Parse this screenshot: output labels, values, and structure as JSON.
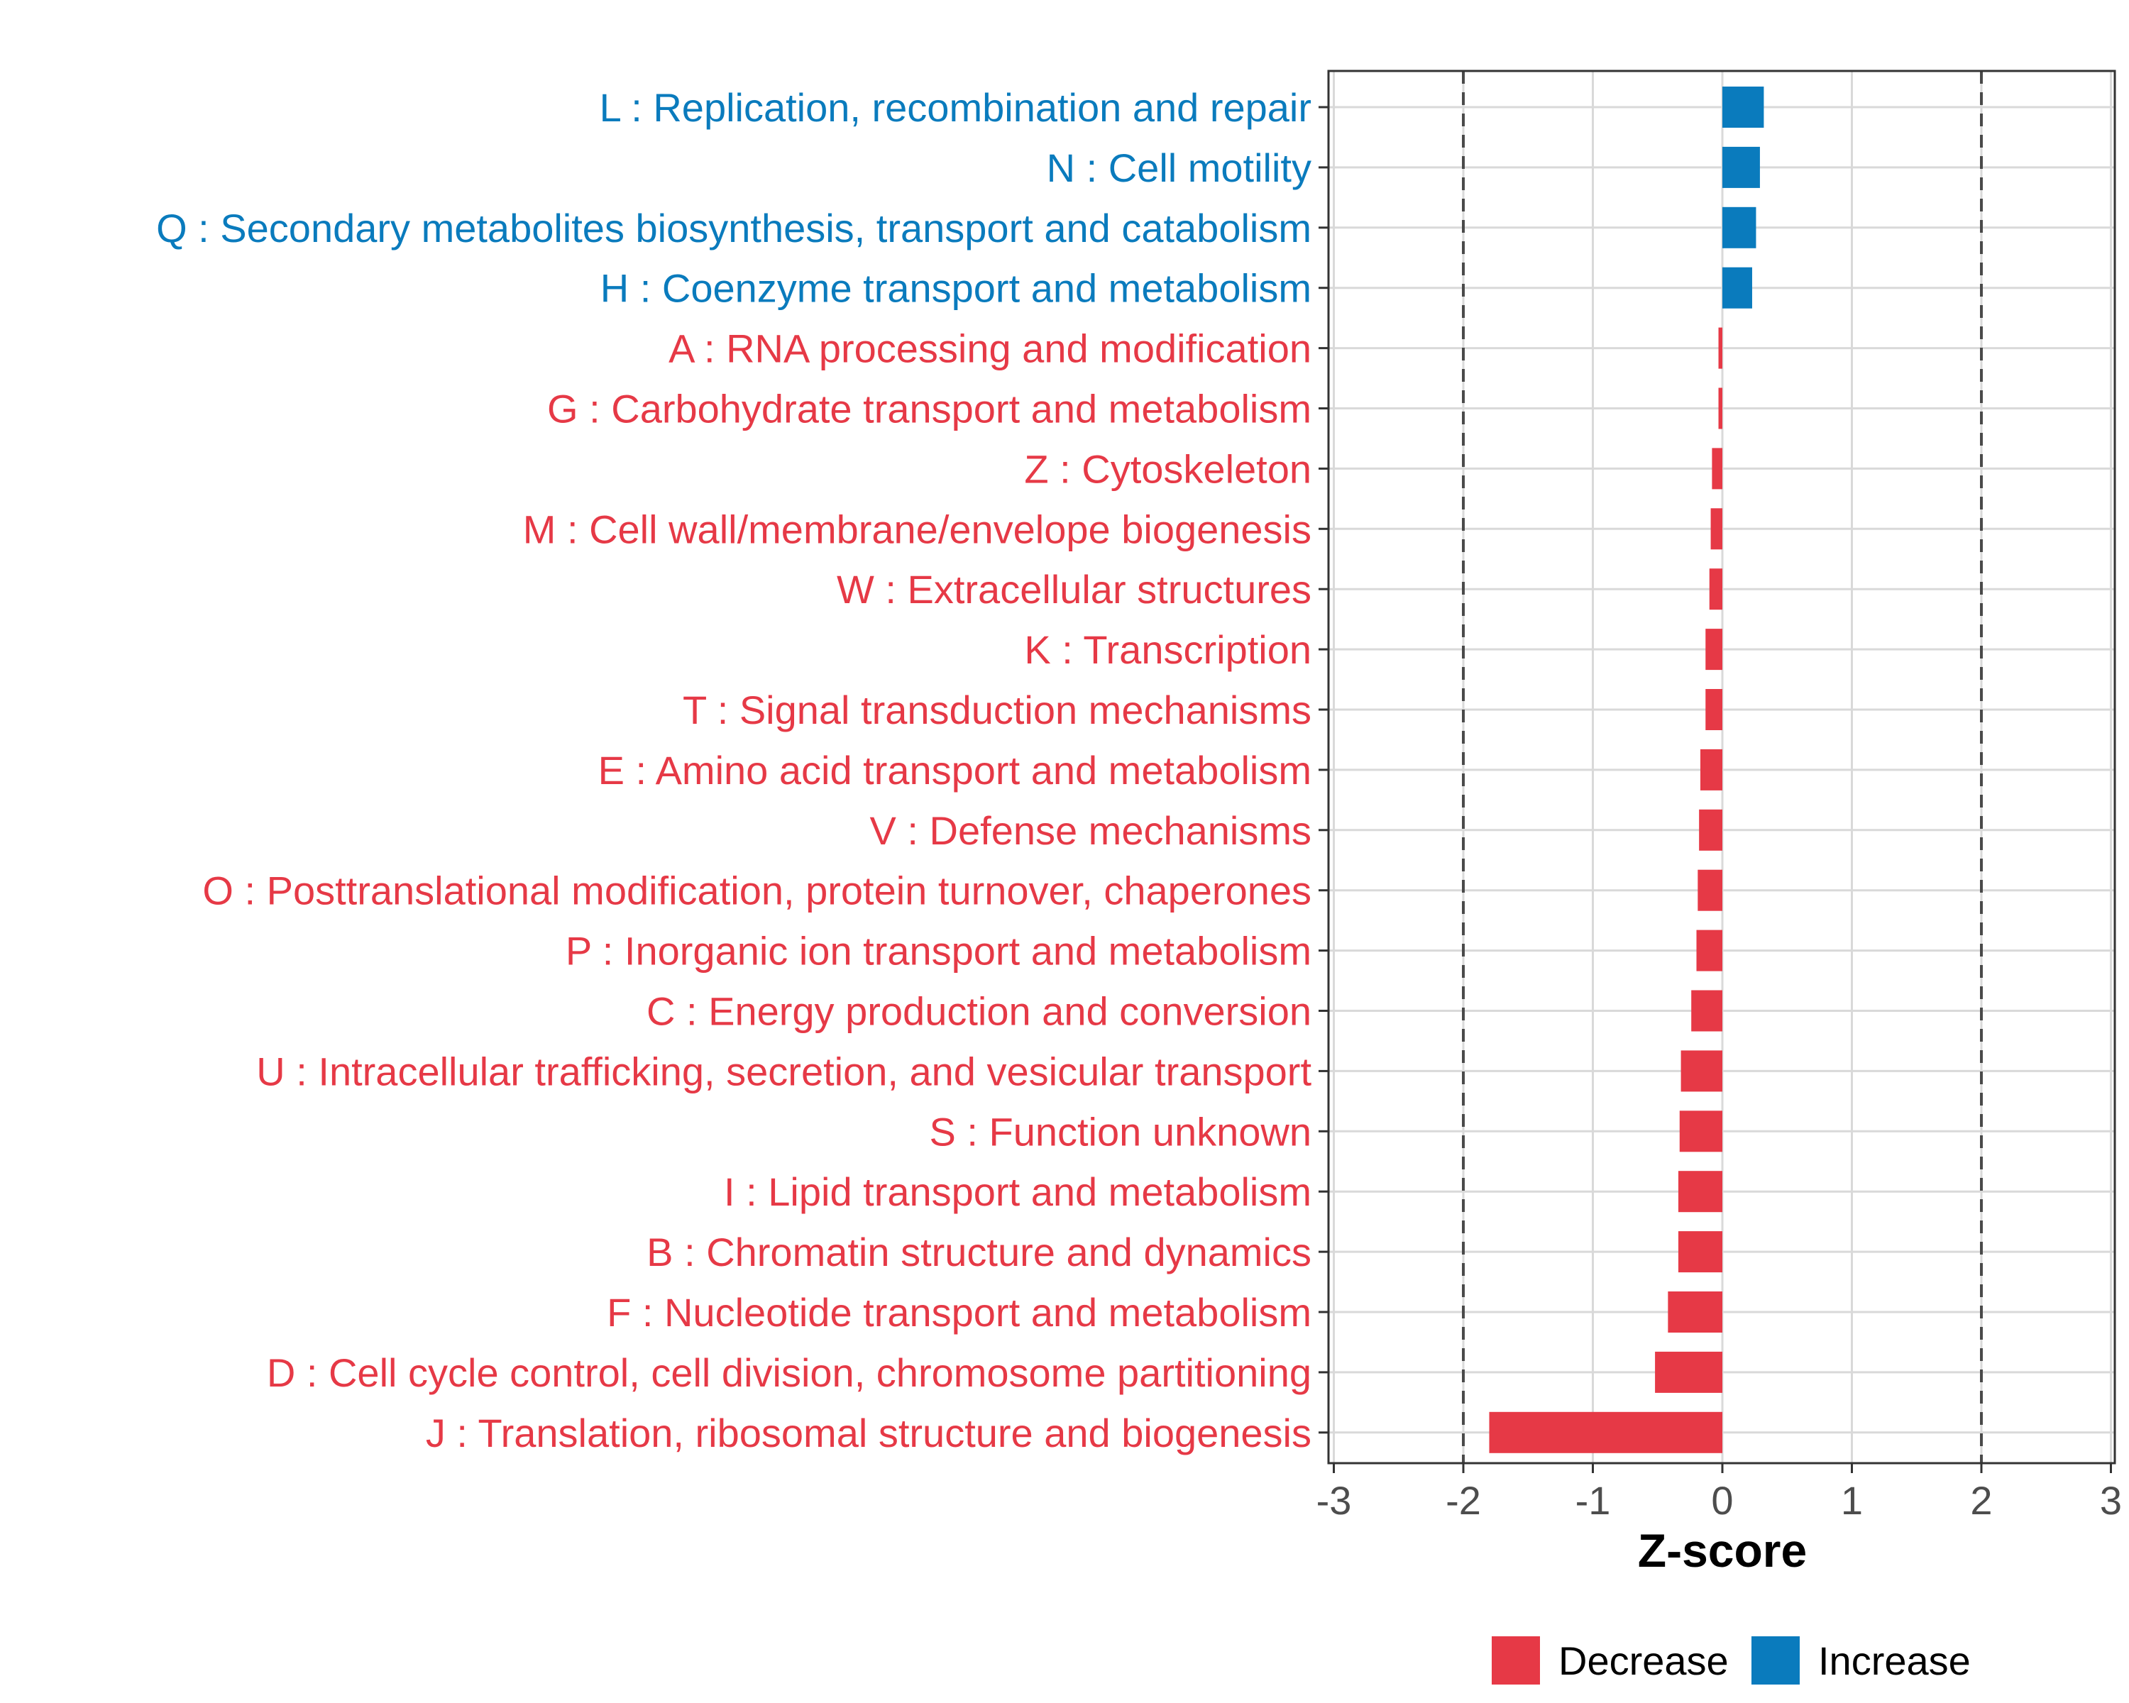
{
  "colors": {
    "decrease": "#e63946",
    "increase": "#0a7bbd",
    "grid": "#d9d9d9",
    "axis": "#333333",
    "threshold": "#4a4a4a"
  },
  "chart_data": {
    "type": "bar",
    "orientation": "horizontal",
    "title": "",
    "xlabel": "Z-score",
    "ylabel": "",
    "xlim": [
      -3,
      3
    ],
    "xticks": [
      -3,
      -2,
      -1,
      0,
      1,
      2,
      3
    ],
    "xtick_labels": [
      "-3",
      "-2",
      "-1",
      "0",
      "1",
      "2",
      "3"
    ],
    "threshold_lines": [
      -2,
      2
    ],
    "grid": true,
    "legend_position": "bottom",
    "legend": [
      {
        "label": "Decrease",
        "color": "#e63946"
      },
      {
        "label": "Increase",
        "color": "#0a7bbd"
      }
    ],
    "categories": [
      "L : Replication, recombination and repair",
      "N : Cell motility",
      "Q : Secondary metabolites biosynthesis, transport and catabolism",
      "H : Coenzyme transport and metabolism",
      "A : RNA processing and modification",
      "G : Carbohydrate transport and metabolism",
      "Z : Cytoskeleton",
      "M : Cell wall/membrane/envelope biogenesis",
      "W : Extracellular structures",
      "K : Transcription",
      "T : Signal transduction mechanisms",
      "E : Amino acid transport and metabolism",
      "V : Defense mechanisms",
      "O : Posttranslational modification, protein turnover, chaperones",
      "P : Inorganic ion transport and metabolism",
      "C : Energy production and conversion",
      "U : Intracellular trafficking, secretion, and vesicular transport",
      "S : Function unknown",
      "I : Lipid transport and metabolism",
      "B : Chromatin structure and dynamics",
      "F : Nucleotide transport and metabolism",
      "D : Cell cycle control, cell division, chromosome partitioning",
      "J : Translation, ribosomal structure and biogenesis"
    ],
    "values": [
      0.32,
      0.29,
      0.26,
      0.23,
      -0.03,
      -0.03,
      -0.08,
      -0.09,
      -0.1,
      -0.13,
      -0.13,
      -0.17,
      -0.18,
      -0.19,
      -0.2,
      -0.24,
      -0.32,
      -0.33,
      -0.34,
      -0.34,
      -0.42,
      -0.52,
      -1.8
    ],
    "direction": [
      "Increase",
      "Increase",
      "Increase",
      "Increase",
      "Decrease",
      "Decrease",
      "Decrease",
      "Decrease",
      "Decrease",
      "Decrease",
      "Decrease",
      "Decrease",
      "Decrease",
      "Decrease",
      "Decrease",
      "Decrease",
      "Decrease",
      "Decrease",
      "Decrease",
      "Decrease",
      "Decrease",
      "Decrease",
      "Decrease"
    ]
  }
}
